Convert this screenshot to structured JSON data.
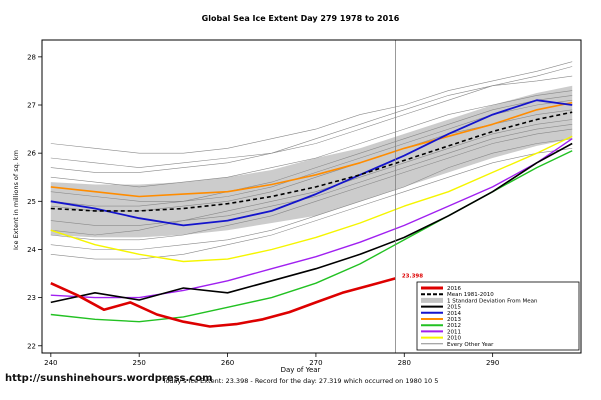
{
  "title": "Global Sea Ice Extent Day 279 1978 to 2016",
  "footer": {
    "left": "http://sunshinehours.wordpress.com",
    "center": "Today's Ice Extent: 23.398 - Record for the day: 27.319 which occurred on 1980 10 5"
  },
  "chart_data": {
    "type": "line",
    "title": "Global Sea Ice Extent Day 279 1978 to 2016",
    "axes": {
      "x": {
        "label": "Day of Year",
        "ticks": [
          240,
          250,
          260,
          270,
          280,
          290
        ],
        "domain": [
          239,
          300
        ]
      },
      "y": {
        "label": "Ice Extent in millions of sq. km",
        "ticks": [
          22,
          23,
          24,
          25,
          26,
          27,
          28
        ],
        "domain": [
          21.85,
          28.35
        ]
      }
    },
    "x": [
      240,
      245,
      250,
      255,
      260,
      265,
      270,
      275,
      280,
      285,
      290,
      295,
      299
    ],
    "band": {
      "name": "1 Standard Deviation From Mean",
      "upper": [
        25.4,
        25.35,
        25.35,
        25.4,
        25.5,
        25.65,
        25.9,
        26.1,
        26.4,
        26.7,
        27.0,
        27.25,
        27.4
      ],
      "lower": [
        24.3,
        24.25,
        24.25,
        24.3,
        24.4,
        24.55,
        24.7,
        25.0,
        25.3,
        25.6,
        25.9,
        26.15,
        26.3
      ],
      "fill": "#c3c3c3",
      "opacity": 0.85
    },
    "other_style": {
      "name": "Every Other Year",
      "color": "#8a8a8a",
      "width": 0.6
    },
    "other_years": [
      [
        25.9,
        25.8,
        25.7,
        25.8,
        25.9,
        26.0,
        26.2,
        26.5,
        26.8,
        27.1,
        27.4,
        27.6,
        27.8
      ],
      [
        25.5,
        25.4,
        25.3,
        25.4,
        25.5,
        25.7,
        25.9,
        26.2,
        26.5,
        26.8,
        27.0,
        27.2,
        27.3
      ],
      [
        25.2,
        25.1,
        25.0,
        25.0,
        25.1,
        25.3,
        25.6,
        25.9,
        26.2,
        26.5,
        26.8,
        27.0,
        27.1
      ],
      [
        24.9,
        24.8,
        24.8,
        24.9,
        25.0,
        25.2,
        25.5,
        25.8,
        26.1,
        26.4,
        26.6,
        26.8,
        26.9
      ],
      [
        24.6,
        24.5,
        24.5,
        24.6,
        24.8,
        25.0,
        25.2,
        25.5,
        25.8,
        26.1,
        26.4,
        26.6,
        26.7
      ],
      [
        24.3,
        24.2,
        24.2,
        24.3,
        24.5,
        24.7,
        25.0,
        25.3,
        25.6,
        25.9,
        26.2,
        26.4,
        26.5
      ],
      [
        24.1,
        24.0,
        24.0,
        24.1,
        24.2,
        24.4,
        24.7,
        25.0,
        25.3,
        25.7,
        26.0,
        26.2,
        26.3
      ],
      [
        26.2,
        26.1,
        26.0,
        26.0,
        26.1,
        26.3,
        26.5,
        26.8,
        27.0,
        27.3,
        27.5,
        27.7,
        27.9
      ],
      [
        25.7,
        25.6,
        25.6,
        25.7,
        25.8,
        26.0,
        26.3,
        26.6,
        26.9,
        27.2,
        27.4,
        27.5,
        27.6
      ],
      [
        24.4,
        24.3,
        24.4,
        24.6,
        24.7,
        24.9,
        25.1,
        25.4,
        25.7,
        26.0,
        26.3,
        26.5,
        26.6
      ],
      [
        23.9,
        23.8,
        23.8,
        23.9,
        24.1,
        24.3,
        24.6,
        24.9,
        25.2,
        25.5,
        25.8,
        26.0,
        26.1
      ],
      [
        25.0,
        24.9,
        24.9,
        25.0,
        25.2,
        25.4,
        25.7,
        26.0,
        26.3,
        26.6,
        26.9,
        27.1,
        27.2
      ]
    ],
    "series": [
      {
        "name": "2010",
        "color": "#f5f500",
        "width": 1.4,
        "dash": "",
        "values": [
          24.4,
          24.1,
          23.9,
          23.75,
          23.8,
          24.0,
          24.25,
          24.55,
          24.9,
          25.2,
          25.6,
          26.0,
          26.35
        ]
      },
      {
        "name": "2011",
        "color": "#a020f0",
        "width": 1.4,
        "dash": "",
        "values": [
          23.05,
          23.0,
          23.0,
          23.15,
          23.35,
          23.6,
          23.85,
          24.15,
          24.5,
          24.9,
          25.3,
          25.8,
          26.3
        ]
      },
      {
        "name": "2012",
        "color": "#22c122",
        "width": 1.4,
        "dash": "",
        "values": [
          22.65,
          22.55,
          22.5,
          22.6,
          22.8,
          23.0,
          23.3,
          23.7,
          24.2,
          24.7,
          25.2,
          25.7,
          26.05
        ]
      },
      {
        "name": "2013",
        "color": "#ff8c00",
        "width": 1.6,
        "dash": "",
        "values": [
          25.3,
          25.2,
          25.1,
          25.15,
          25.2,
          25.35,
          25.55,
          25.8,
          26.1,
          26.35,
          26.6,
          26.9,
          27.05
        ]
      },
      {
        "name": "2014",
        "color": "#1414cc",
        "width": 1.8,
        "dash": "",
        "values": [
          25.0,
          24.85,
          24.65,
          24.5,
          24.6,
          24.8,
          25.15,
          25.55,
          25.95,
          26.4,
          26.8,
          27.1,
          27.0
        ]
      },
      {
        "name": "2015",
        "color": "#000000",
        "width": 1.6,
        "dash": "",
        "values": [
          22.9,
          23.1,
          22.95,
          23.2,
          23.1,
          23.35,
          23.6,
          23.9,
          24.25,
          24.7,
          25.2,
          25.8,
          26.2
        ]
      },
      {
        "name": "Mean 1981-2010",
        "color": "#000000",
        "width": 1.6,
        "dash": "4 3",
        "values": [
          24.85,
          24.8,
          24.8,
          24.85,
          24.95,
          25.1,
          25.3,
          25.55,
          25.85,
          26.15,
          26.45,
          26.7,
          26.85
        ]
      },
      {
        "name": "2016",
        "color": "#dd0000",
        "width": 2.6,
        "dash": "",
        "x": [
          240,
          243,
          246,
          249,
          252,
          255,
          258,
          261,
          264,
          267,
          270,
          273,
          276,
          279
        ],
        "values": [
          23.3,
          23.05,
          22.75,
          22.9,
          22.65,
          22.5,
          22.4,
          22.45,
          22.55,
          22.7,
          22.9,
          23.1,
          23.25,
          23.4
        ]
      }
    ],
    "marker": {
      "day": 279,
      "color": "#808080"
    },
    "annotation": {
      "day": 279.5,
      "value": 23.42,
      "text": "23.398",
      "color": "#dd0000"
    },
    "legend": {
      "position": "bottom-right",
      "entries": [
        {
          "label": "2016",
          "color": "#dd0000",
          "width": 3,
          "dash": ""
        },
        {
          "label": "Mean 1981-2010",
          "color": "#000000",
          "width": 2,
          "dash": "4 2"
        },
        {
          "label": "1 Standard Deviation From Mean",
          "color": "#c3c3c3",
          "width": 5,
          "dash": ""
        },
        {
          "label": "2015",
          "color": "#000000",
          "width": 2,
          "dash": ""
        },
        {
          "label": "2014",
          "color": "#1414cc",
          "width": 2,
          "dash": ""
        },
        {
          "label": "2013",
          "color": "#ff8c00",
          "width": 2,
          "dash": ""
        },
        {
          "label": "2012",
          "color": "#22c122",
          "width": 2,
          "dash": ""
        },
        {
          "label": "2011",
          "color": "#a020f0",
          "width": 2,
          "dash": ""
        },
        {
          "label": "2010",
          "color": "#f5f500",
          "width": 2,
          "dash": ""
        },
        {
          "label": "Every Other Year",
          "color": "#8a8a8a",
          "width": 1,
          "dash": ""
        }
      ]
    }
  }
}
